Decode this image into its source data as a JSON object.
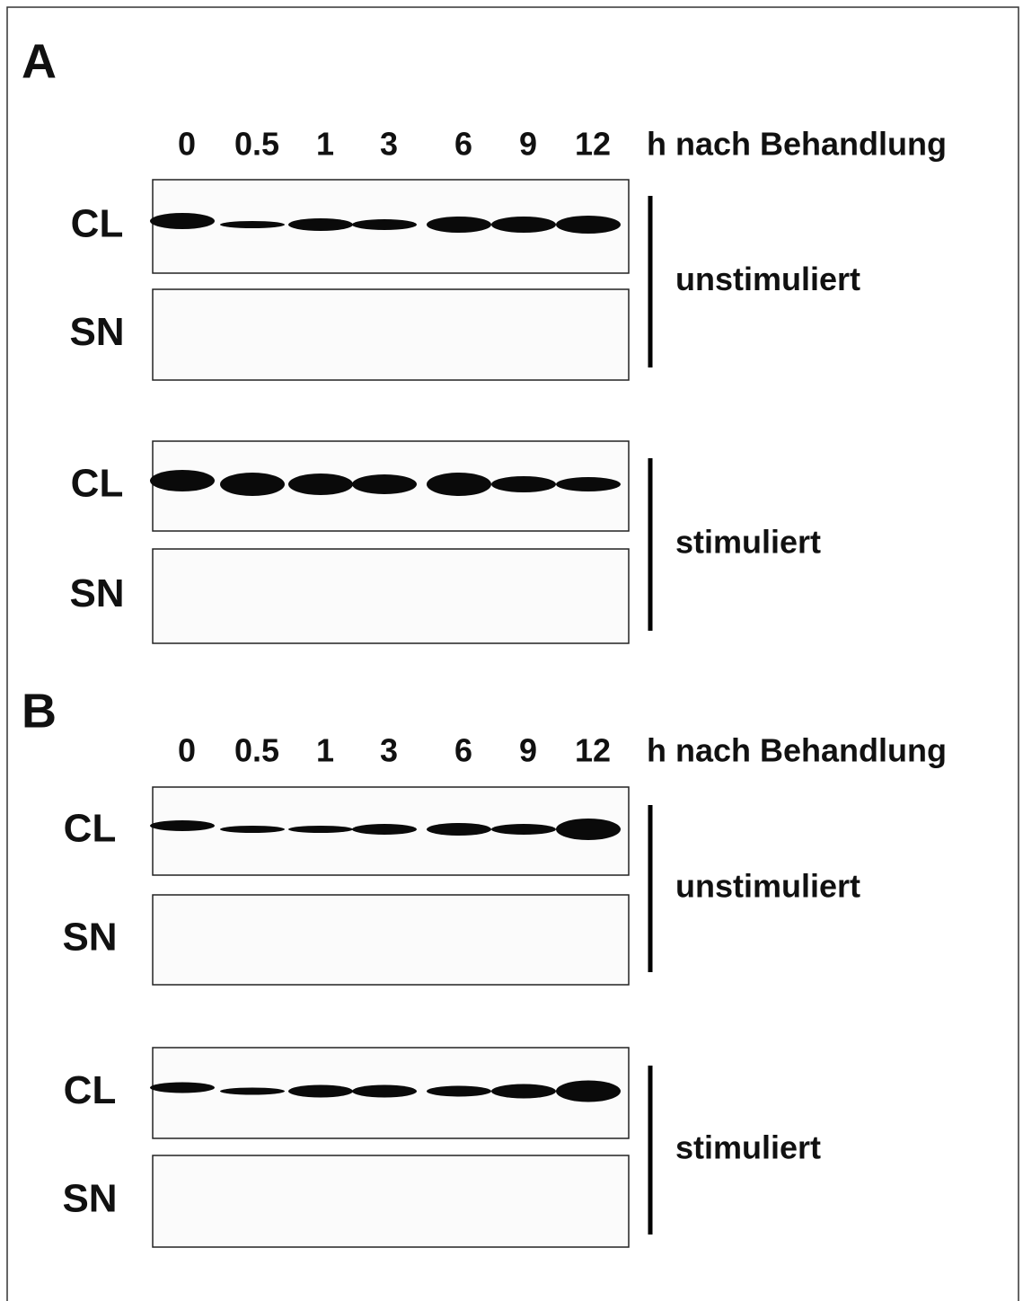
{
  "panels": [
    {
      "label": "A",
      "lanes": [
        "0",
        "0.5",
        "1",
        "3",
        "6",
        "9",
        "12"
      ],
      "unit": "h nach Behandlung",
      "groups": [
        {
          "condition": "unstimuliert",
          "blots": [
            "CL",
            "SN"
          ]
        },
        {
          "condition": "stimuliert",
          "blots": [
            "CL",
            "SN"
          ]
        }
      ]
    },
    {
      "label": "B",
      "lanes": [
        "0",
        "0.5",
        "1",
        "3",
        "6",
        "9",
        "12"
      ],
      "unit": "h nach Behandlung",
      "groups": [
        {
          "condition": "unstimuliert",
          "blots": [
            "CL",
            "SN"
          ]
        },
        {
          "condition": "stimuliert",
          "blots": [
            "CL",
            "SN"
          ]
        }
      ]
    }
  ]
}
